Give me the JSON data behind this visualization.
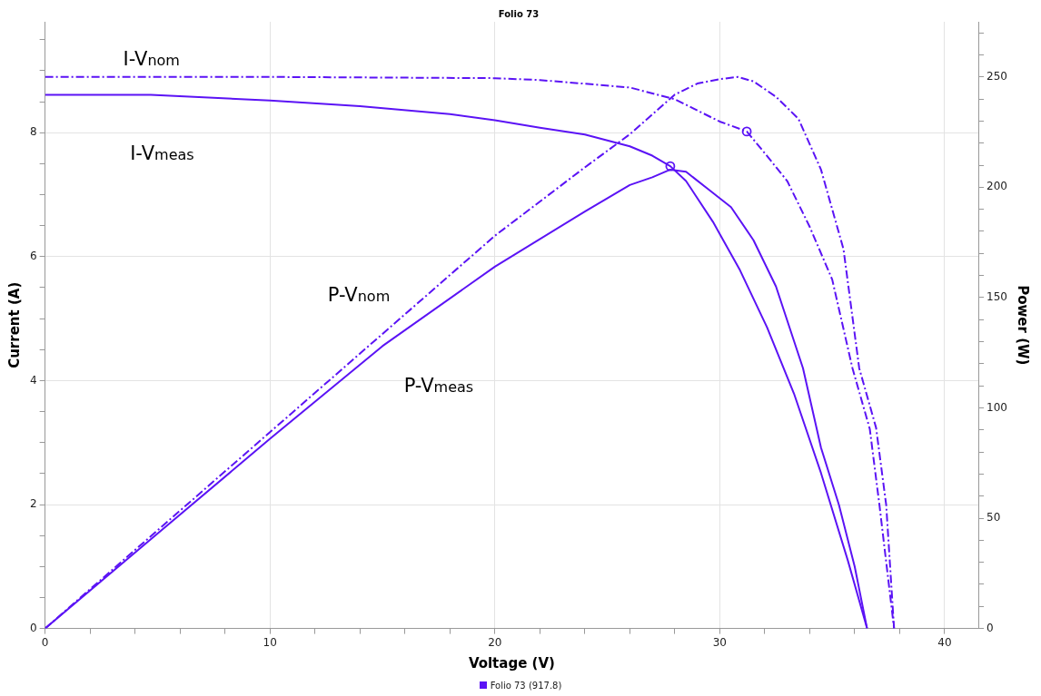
{
  "chart_data": {
    "type": "line",
    "title": "Folio 73",
    "xlabel": "Voltage (V)",
    "ylabel": "Current (A)",
    "y2label": "Power (W)",
    "grid": true,
    "xlim": [
      0,
      41.5
    ],
    "ylim": [
      0,
      9.79
    ],
    "y2lim": [
      0,
      275
    ],
    "xticks": [
      0,
      {
        "value": 2,
        "label": null
      },
      {
        "value": 4,
        "label": null
      },
      {
        "value": 6,
        "label": null
      },
      {
        "value": 8,
        "label": null
      },
      10,
      {
        "value": 12,
        "label": null
      },
      {
        "value": 14,
        "label": null
      },
      {
        "value": 16,
        "label": null
      },
      {
        "value": 18,
        "label": null
      },
      20,
      {
        "value": 22,
        "label": null
      },
      {
        "value": 24,
        "label": null
      },
      {
        "value": 26,
        "label": null
      },
      {
        "value": 28,
        "label": null
      },
      30,
      {
        "value": 32,
        "label": null
      },
      {
        "value": 34,
        "label": null
      },
      {
        "value": 36,
        "label": null
      },
      {
        "value": 38,
        "label": null
      },
      40
    ],
    "yticks": [
      0,
      {
        "value": 0.5,
        "label": null
      },
      {
        "value": 1,
        "label": null
      },
      {
        "value": 1.5,
        "label": null
      },
      2,
      {
        "value": 2.5,
        "label": null
      },
      {
        "value": 3,
        "label": null
      },
      {
        "value": 3.5,
        "label": null
      },
      4,
      {
        "value": 4.5,
        "label": null
      },
      {
        "value": 5,
        "label": null
      },
      {
        "value": 5.5,
        "label": null
      },
      6,
      {
        "value": 6.5,
        "label": null
      },
      {
        "value": 7,
        "label": null
      },
      {
        "value": 7.5,
        "label": null
      },
      8,
      {
        "value": 8.5,
        "label": null
      },
      {
        "value": 9,
        "label": null
      },
      {
        "value": 9.5,
        "label": null
      }
    ],
    "y2ticks": [
      0,
      {
        "value": 10,
        "label": null
      },
      {
        "value": 20,
        "label": null
      },
      {
        "value": 30,
        "label": null
      },
      {
        "value": 40,
        "label": null
      },
      50,
      {
        "value": 60,
        "label": null
      },
      {
        "value": 70,
        "label": null
      },
      {
        "value": 80,
        "label": null
      },
      {
        "value": 90,
        "label": null
      },
      100,
      {
        "value": 110,
        "label": null
      },
      {
        "value": 120,
        "label": null
      },
      {
        "value": 130,
        "label": null
      },
      {
        "value": 140,
        "label": null
      },
      150,
      {
        "value": 160,
        "label": null
      },
      {
        "value": 170,
        "label": null
      },
      {
        "value": 180,
        "label": null
      },
      {
        "value": 190,
        "label": null
      },
      200,
      {
        "value": 210,
        "label": null
      },
      {
        "value": 220,
        "label": null
      },
      {
        "value": 230,
        "label": null
      },
      {
        "value": 240,
        "label": null
      },
      250,
      {
        "value": 260,
        "label": null
      },
      {
        "value": 270,
        "label": null
      }
    ],
    "series": [
      {
        "name": "I-V$_{nom}$",
        "color": "#5b13f5",
        "line_style": "dashed",
        "marker": "none",
        "x": [
          0,
          10,
          20,
          22,
          26,
          28,
          29,
          30,
          31.2,
          32,
          33,
          34,
          35,
          35.9,
          36.67,
          37.1,
          37.75
        ],
        "values": [
          8.9,
          8.9,
          8.88,
          8.85,
          8.73,
          8.54,
          8.36,
          8.18,
          8.02,
          7.67,
          7.22,
          6.48,
          5.63,
          4.2,
          3.22,
          1.99,
          0
        ]
      },
      {
        "name": "I-V$_{meas}$",
        "color": "#5b13f5",
        "line_style": "solid",
        "marker": "none",
        "x": [
          0,
          4.7,
          10,
          14,
          18,
          20,
          22,
          24,
          26,
          27,
          27.8,
          28.5,
          29.7,
          30.9,
          32.1,
          33.3,
          34.5,
          35.7,
          36.55
        ],
        "values": [
          8.61,
          8.61,
          8.52,
          8.43,
          8.3,
          8.2,
          8.08,
          7.97,
          7.78,
          7.63,
          7.46,
          7.22,
          6.56,
          5.78,
          4.86,
          3.79,
          2.51,
          1.09,
          0
        ]
      },
      {
        "name": "P-V$_{nom}$",
        "axis": "y2",
        "color": "#5b13f5",
        "line_style": "dashed",
        "marker": "none",
        "x": [
          0,
          10,
          20,
          24,
          26,
          28,
          29,
          30,
          30.8,
          31.5,
          32.5,
          33.5,
          34.5,
          35.5,
          36.2,
          36.95,
          37.4,
          37.75
        ],
        "values": [
          0,
          89,
          178,
          209,
          224,
          242,
          247,
          249,
          250,
          248,
          241,
          231,
          208,
          172,
          118,
          91,
          56,
          0
        ]
      },
      {
        "name": "P-V$_{meas}$",
        "axis": "y2",
        "color": "#5b13f5",
        "line_style": "solid",
        "marker": "none",
        "x": [
          0,
          5,
          10,
          15,
          20,
          24,
          26,
          27,
          27.8,
          28.5,
          29.5,
          30.5,
          31.5,
          32.5,
          33.7,
          34.5,
          35.3,
          36,
          36.55
        ],
        "values": [
          0,
          43,
          86,
          128,
          164,
          189,
          201,
          204.5,
          208,
          207,
          199,
          191,
          176,
          155,
          118,
          82,
          56,
          28,
          0
        ]
      },
      {
        "type": "scatter",
        "color": "#5b13f5",
        "marker": "circle",
        "x": [
          27.8,
          31.2
        ],
        "values": [
          7.46,
          8.02
        ]
      }
    ],
    "annotations": [
      "Folio 73 (917.8)"
    ]
  }
}
